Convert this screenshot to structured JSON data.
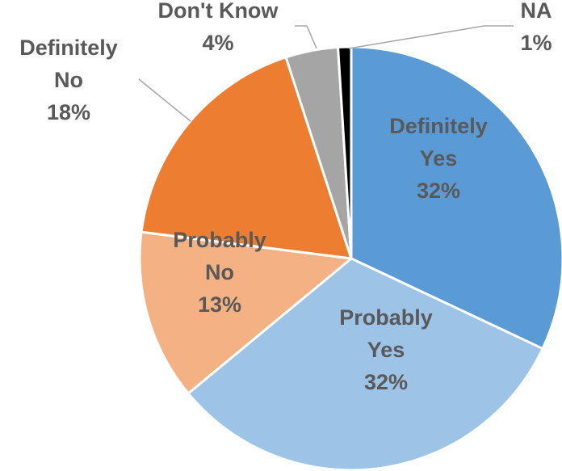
{
  "chart_data": {
    "type": "pie",
    "title": "",
    "slices": [
      {
        "name": "Definitely Yes",
        "value": 32,
        "label_lines": [
          "Definitely",
          "Yes"
        ],
        "pct_label": "32%",
        "color": "#5b9bd5",
        "label_pos": "inside"
      },
      {
        "name": "Probably Yes",
        "value": 32,
        "label_lines": [
          "Probably",
          "Yes"
        ],
        "pct_label": "32%",
        "color": "#9dc3e6",
        "label_pos": "inside"
      },
      {
        "name": "Probably No",
        "value": 13,
        "label_lines": [
          "Probably",
          "No"
        ],
        "pct_label": "13%",
        "color": "#f4b183",
        "label_pos": "inside"
      },
      {
        "name": "Definitely No",
        "value": 18,
        "label_lines": [
          "Definitely",
          "No"
        ],
        "pct_label": "18%",
        "color": "#ed7d31",
        "label_pos": "outside-left"
      },
      {
        "name": "Don't Know",
        "value": 4,
        "label_lines": [
          "Don't Know"
        ],
        "pct_label": "4%",
        "color": "#a5a5a5",
        "label_pos": "outside-top"
      },
      {
        "name": "NA",
        "value": 1,
        "label_lines": [
          "NA"
        ],
        "pct_label": "1%",
        "color": "#000000",
        "label_pos": "outside-top-right"
      }
    ],
    "legend": "none",
    "border_color": "#ffffff",
    "leader_line_color": "#a6a6a6"
  }
}
